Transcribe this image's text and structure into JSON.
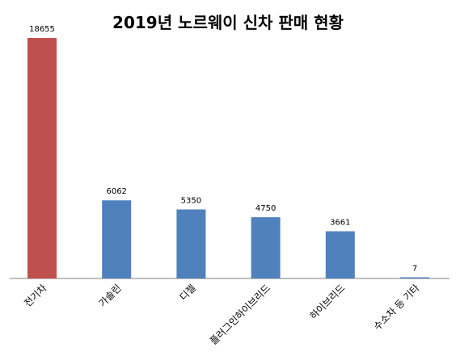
{
  "chart_data": {
    "type": "bar",
    "title": "2019년 노르웨이 신차 판매 현황",
    "categories": [
      "전기차",
      "가솔린",
      "디젤",
      "플러그인하이브리드",
      "하이브리드",
      "수소차 등 기타"
    ],
    "values": [
      18655,
      6062,
      5350,
      4750,
      3661,
      7
    ],
    "value_labels": [
      "18655",
      "6062",
      "5350",
      "4750",
      "3661",
      "7"
    ],
    "xlabel": "",
    "ylabel": "",
    "ylim": [
      0,
      18655
    ],
    "grid": false,
    "legend": "none",
    "bar_colors": [
      "#c0504d",
      "#4f81bd",
      "#4f81bd",
      "#4f81bd",
      "#4f81bd",
      "#4f81bd"
    ],
    "axis_color": "#808080"
  }
}
